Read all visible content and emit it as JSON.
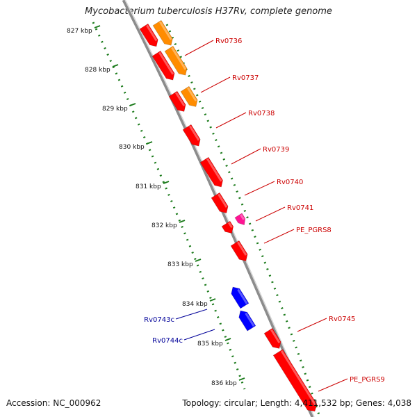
{
  "title": "Mycobacterium tuberculosis H37Rv, complete genome",
  "footer": {
    "accession": "Accession: NC_000962",
    "topology": "Topology: circular; Length: 4,411,532 bp; Genes: 4,038"
  },
  "colors": {
    "forward_gene": "#ff0000",
    "reverse_gene": "#0000ff",
    "orange_gene": "#ff8c00",
    "pe_pgrs_gene": "#ff1493",
    "backbone": "#808080",
    "tick_track": "#008000",
    "forward_label": "#cc0000",
    "reverse_label": "#000099"
  },
  "scale_labels": [
    "827 kbp",
    "828 kbp",
    "829 kbp",
    "830 kbp",
    "831 kbp",
    "832 kbp",
    "833 kbp",
    "834 kbp",
    "835 kbp",
    "836 kbp"
  ],
  "forward_labels": [
    "Rv0736",
    "Rv0737",
    "Rv0738",
    "Rv0739",
    "Rv0740",
    "Rv0741",
    "PE_PGRS8",
    "Rv0745",
    "PE_PGRS9"
  ],
  "reverse_labels": [
    "Rv0743c",
    "Rv0744c"
  ]
}
